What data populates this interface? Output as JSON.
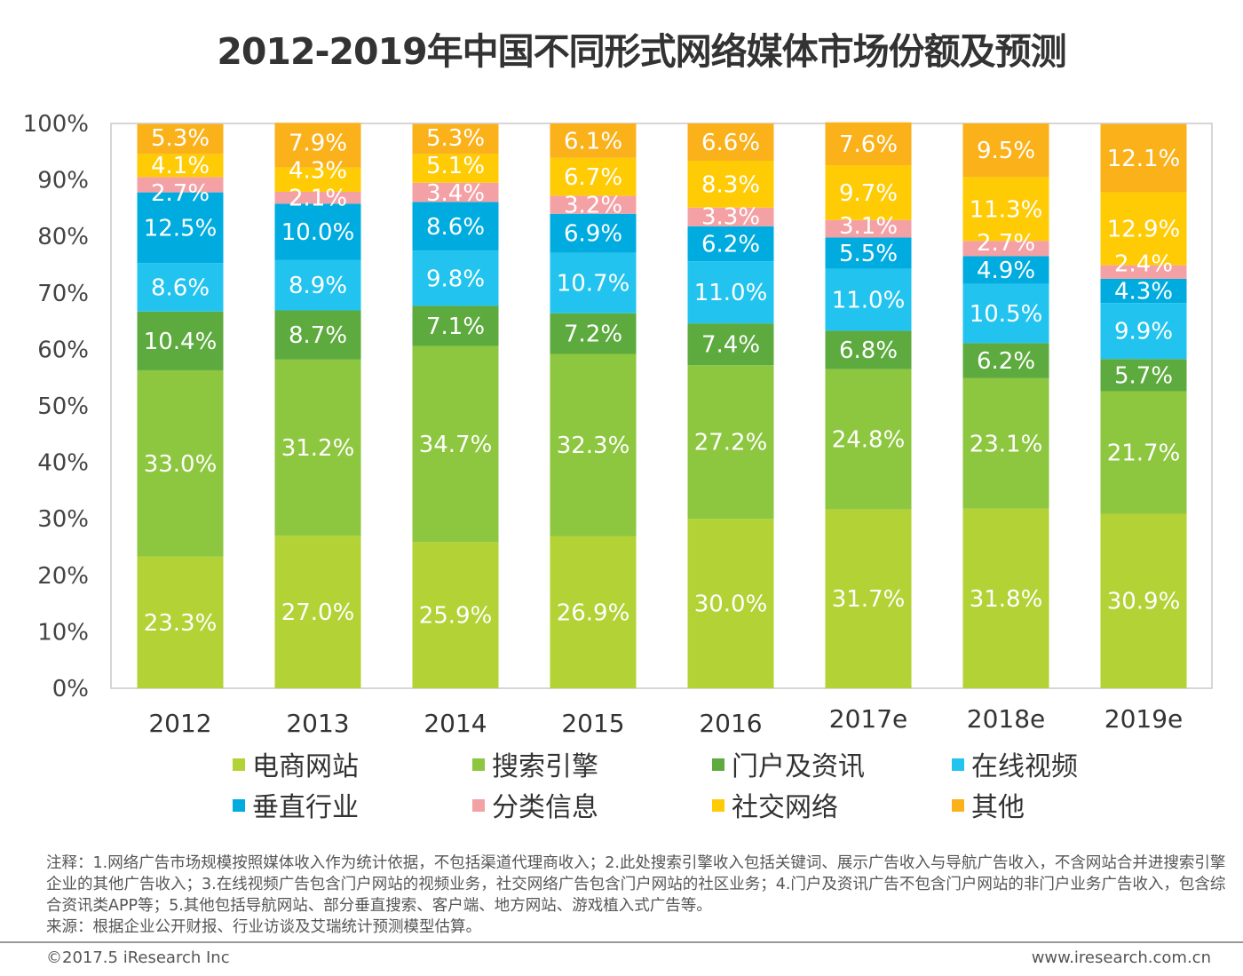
{
  "chart_data": {
    "type": "bar",
    "stacked": true,
    "title": "2012-2019年中国不同形式网络媒体市场份额及预测",
    "categories": [
      "2012",
      "2013",
      "2014",
      "2015",
      "2016",
      "2017e",
      "2018e",
      "2019e"
    ],
    "ylim": [
      0,
      100
    ],
    "yticks": [
      "0%",
      "10%",
      "20%",
      "30%",
      "40%",
      "50%",
      "60%",
      "70%",
      "80%",
      "90%",
      "100%"
    ],
    "grid": false,
    "legend_position": "bottom",
    "series": [
      {
        "name": "电商网站",
        "color": "#b2d235",
        "values": [
          23.3,
          27.0,
          25.9,
          26.9,
          30.0,
          31.7,
          31.8,
          30.9
        ]
      },
      {
        "name": "搜索引擎",
        "color": "#8dc63f",
        "values": [
          33.0,
          31.2,
          34.7,
          32.3,
          27.2,
          24.8,
          23.1,
          21.7
        ]
      },
      {
        "name": "门户及资讯",
        "color": "#5daa3f",
        "values": [
          10.4,
          8.7,
          7.1,
          7.2,
          7.4,
          6.8,
          6.2,
          5.7
        ]
      },
      {
        "name": "在线视频",
        "color": "#22c4ef",
        "values": [
          8.6,
          8.9,
          9.8,
          10.7,
          11.0,
          11.0,
          10.5,
          9.9
        ]
      },
      {
        "name": "垂直行业",
        "color": "#00acdf",
        "values": [
          12.5,
          10.0,
          8.6,
          6.9,
          6.2,
          5.5,
          4.9,
          4.3
        ]
      },
      {
        "name": "分类信息",
        "color": "#f4a1a6",
        "values": [
          2.7,
          2.1,
          3.4,
          3.2,
          3.3,
          3.1,
          2.7,
          2.4
        ]
      },
      {
        "name": "社交网络",
        "color": "#ffcb05",
        "values": [
          4.1,
          4.3,
          5.1,
          6.7,
          8.3,
          9.7,
          11.3,
          12.9
        ]
      },
      {
        "name": "其他",
        "color": "#fbb11a",
        "values": [
          5.3,
          7.9,
          5.3,
          6.1,
          6.6,
          7.6,
          9.5,
          12.1
        ]
      }
    ],
    "legend_order": [
      0,
      1,
      2,
      3,
      4,
      5,
      6,
      7
    ]
  },
  "notes": [
    "注释：1.网络广告市场规模按照媒体收入作为统计依据，不包括渠道代理商收入；2.此处搜索引擎收入包括关键词、展示广告收入与导航广告收入，不含网站合并进搜索引擎企业的其他广告收入；3.在线视频广告包含门户网站的视频业务，社交网络广告包含门户网站的社区业务；4.门户及资讯广告不包含门户网站的非门户业务广告收入，包含综合资讯类APP等；5.其他包括导航网站、部分垂直搜索、客户端、地方网站、游戏植入式广告等。",
    "来源：根据企业公开财报、行业访谈及艾瑞统计预测模型估算。"
  ],
  "footer": {
    "copyright": "©2017.5 iResearch Inc",
    "website": "www.iresearch.com.cn"
  }
}
